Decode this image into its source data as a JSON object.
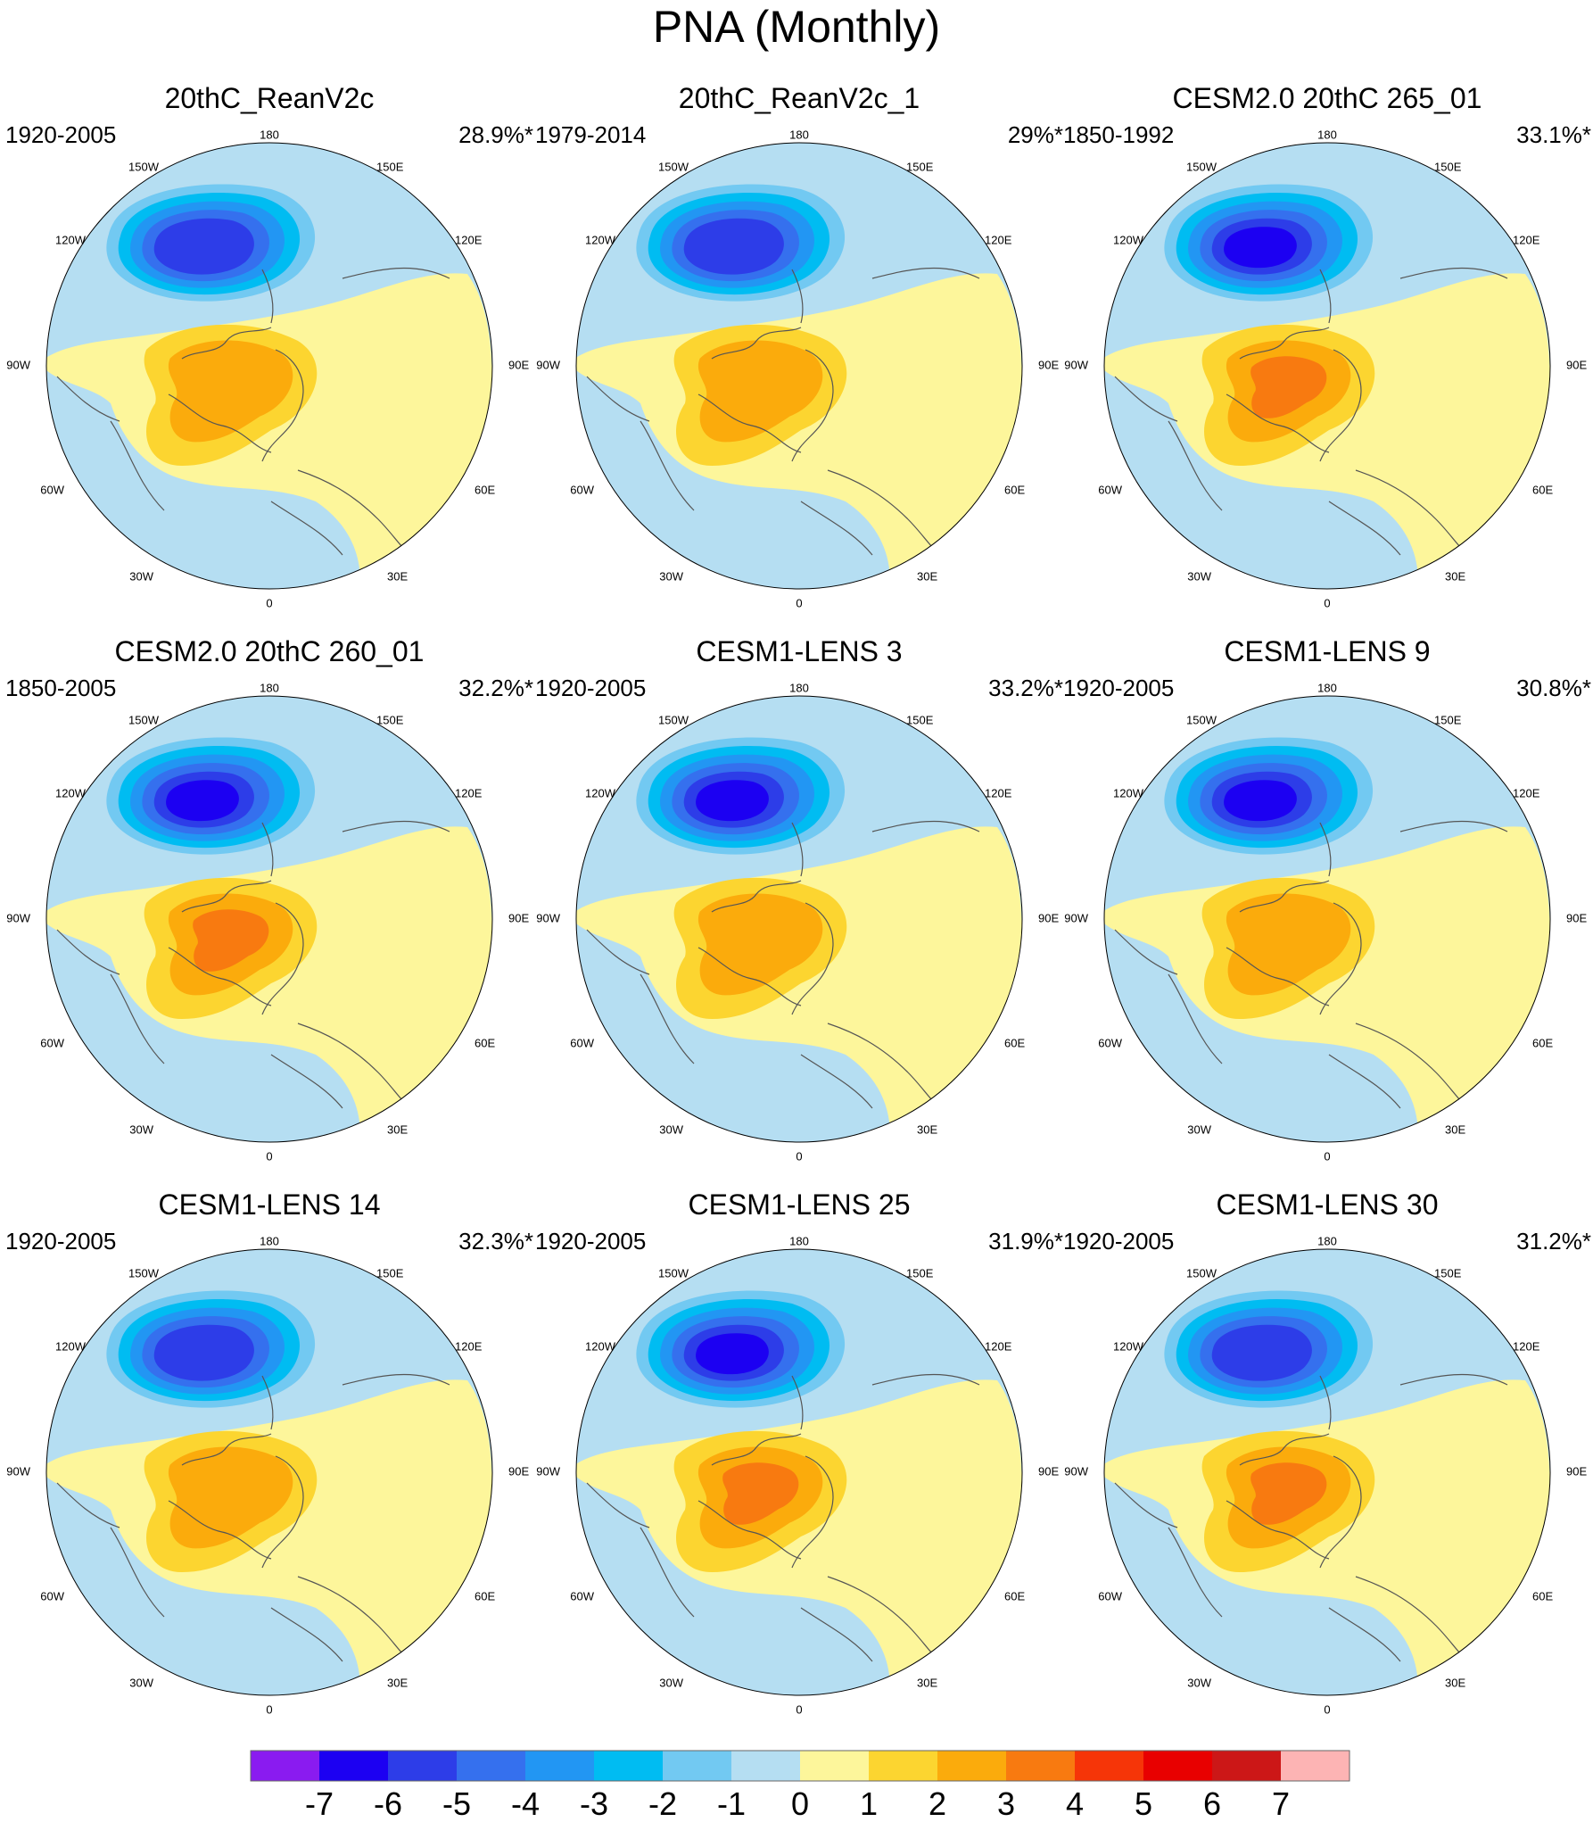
{
  "figure": {
    "title": "PNA (Monthly)"
  },
  "colors": {
    "cm7": "#8a1bf0",
    "cm6": "#1c00f2",
    "cm5": "#2d3de8",
    "cm4": "#3570ee",
    "cm3": "#2296f3",
    "cm2": "#00bcf2",
    "cm1": "#72c9f2",
    "c0n": "#b5def2",
    "c0p": "#fdf69b",
    "c1": "#fcd530",
    "c2": "#fbab0c",
    "c3": "#f87a10",
    "c4": "#f63508",
    "c5": "#e80000",
    "c6": "#cc1717",
    "c7": "#fdb4b4",
    "coast": "#555555"
  },
  "axis_labels": {
    "top": "180",
    "bottom": "0",
    "lon_150w": "150W",
    "lon_150e": "150E",
    "lon_120w": "120W",
    "lon_120e": "120E",
    "lon_90w": "90W",
    "lon_90e": "90E",
    "lon_60w": "60W",
    "lon_60e": "60E",
    "lon_30w": "30W",
    "lon_30e": "30E"
  },
  "panels": [
    {
      "title": "20thC_ReanV2c",
      "period": "1920-2005",
      "percent": "28.9%*",
      "low_level": 5,
      "high_level": 2
    },
    {
      "title": "20thC_ReanV2c_1",
      "period": "1979-2014",
      "percent": "29%*",
      "low_level": 5,
      "high_level": 2
    },
    {
      "title": "CESM2.0 20thC 265_01",
      "period": "1850-1992",
      "percent": "33.1%*",
      "low_level": 6,
      "high_level": 3
    },
    {
      "title": "CESM2.0 20thC 260_01",
      "period": "1850-2005",
      "percent": "32.2%*",
      "low_level": 6,
      "high_level": 3
    },
    {
      "title": "CESM1-LENS 3",
      "period": "1920-2005",
      "percent": "33.2%*",
      "low_level": 6,
      "high_level": 2
    },
    {
      "title": "CESM1-LENS 9",
      "period": "1920-2005",
      "percent": "30.8%*",
      "low_level": 6,
      "high_level": 2
    },
    {
      "title": "CESM1-LENS 14",
      "period": "1920-2005",
      "percent": "32.3%*",
      "low_level": 5,
      "high_level": 2
    },
    {
      "title": "CESM1-LENS 25",
      "period": "1920-2005",
      "percent": "31.9%*",
      "low_level": 6,
      "high_level": 3
    },
    {
      "title": "CESM1-LENS 30",
      "period": "1920-2005",
      "percent": "31.2%*",
      "low_level": 5,
      "high_level": 3
    }
  ],
  "colorbar": {
    "labels": [
      "-7",
      "-6",
      "-5",
      "-4",
      "-3",
      "-2",
      "-1",
      "0",
      "1",
      "2",
      "3",
      "4",
      "5",
      "6",
      "7"
    ]
  }
}
